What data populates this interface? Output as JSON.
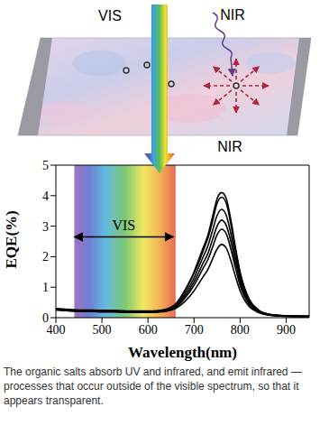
{
  "diagram": {
    "labels": {
      "vis": "VIS",
      "nir_in": "NIR",
      "nir_out": "NIR"
    }
  },
  "chart_data": {
    "type": "line",
    "x_label": "Wavelength(nm)",
    "y_label": "EQE(%)",
    "x": [
      400,
      420,
      440,
      460,
      480,
      500,
      520,
      540,
      560,
      580,
      600,
      620,
      640,
      660,
      680,
      700,
      710,
      720,
      730,
      740,
      750,
      760,
      770,
      780,
      790,
      800,
      820,
      840,
      860,
      880,
      900,
      920,
      940,
      950
    ],
    "series": [
      {
        "color": "#000000",
        "values": [
          0.3,
          0.28,
          0.26,
          0.25,
          0.25,
          0.24,
          0.24,
          0.23,
          0.22,
          0.22,
          0.22,
          0.23,
          0.28,
          0.45,
          0.9,
          1.5,
          1.9,
          2.3,
          2.7,
          3.3,
          3.9,
          4.1,
          3.9,
          3.2,
          2.3,
          1.5,
          0.6,
          0.25,
          0.12,
          0.08,
          0.06,
          0.05,
          0.05,
          0.05
        ]
      },
      {
        "color": "#000000",
        "values": [
          0.29,
          0.27,
          0.25,
          0.24,
          0.24,
          0.23,
          0.23,
          0.22,
          0.21,
          0.21,
          0.21,
          0.22,
          0.27,
          0.43,
          0.86,
          1.45,
          1.8,
          2.2,
          2.6,
          3.15,
          3.75,
          3.95,
          3.75,
          3.05,
          2.2,
          1.45,
          0.58,
          0.24,
          0.12,
          0.08,
          0.06,
          0.05,
          0.05,
          0.05
        ]
      },
      {
        "color": "#000000",
        "values": [
          0.28,
          0.26,
          0.24,
          0.23,
          0.23,
          0.22,
          0.22,
          0.21,
          0.2,
          0.2,
          0.2,
          0.21,
          0.26,
          0.4,
          0.78,
          1.3,
          1.65,
          2.0,
          2.35,
          2.85,
          3.35,
          3.55,
          3.35,
          2.75,
          2.0,
          1.3,
          0.52,
          0.22,
          0.11,
          0.07,
          0.05,
          0.05,
          0.04,
          0.04
        ]
      },
      {
        "color": "#000000",
        "values": [
          0.27,
          0.25,
          0.23,
          0.22,
          0.22,
          0.21,
          0.21,
          0.2,
          0.19,
          0.19,
          0.19,
          0.2,
          0.24,
          0.37,
          0.7,
          1.17,
          1.48,
          1.8,
          2.1,
          2.55,
          3.0,
          3.2,
          3.02,
          2.5,
          1.8,
          1.17,
          0.47,
          0.2,
          0.1,
          0.07,
          0.05,
          0.04,
          0.04,
          0.04
        ]
      },
      {
        "color": "#000000",
        "values": [
          0.26,
          0.24,
          0.22,
          0.21,
          0.21,
          0.2,
          0.2,
          0.19,
          0.18,
          0.18,
          0.18,
          0.19,
          0.23,
          0.34,
          0.64,
          1.06,
          1.34,
          1.63,
          1.9,
          2.3,
          2.72,
          2.9,
          2.75,
          2.25,
          1.63,
          1.06,
          0.43,
          0.19,
          0.1,
          0.06,
          0.05,
          0.04,
          0.04,
          0.04
        ]
      },
      {
        "color": "#000000",
        "values": [
          0.25,
          0.23,
          0.21,
          0.2,
          0.2,
          0.19,
          0.19,
          0.18,
          0.17,
          0.17,
          0.17,
          0.18,
          0.21,
          0.3,
          0.53,
          0.88,
          1.11,
          1.35,
          1.58,
          1.92,
          2.25,
          2.4,
          2.28,
          1.87,
          1.35,
          0.88,
          0.36,
          0.17,
          0.09,
          0.06,
          0.04,
          0.04,
          0.03,
          0.03
        ]
      }
    ],
    "xlim": [
      400,
      950
    ],
    "xticks": [
      400,
      500,
      600,
      700,
      800,
      900
    ],
    "ylim": [
      0,
      5
    ],
    "yticks": [
      0,
      1,
      2,
      3,
      4,
      5
    ],
    "grid": false,
    "spectrum_band": [
      440,
      660
    ],
    "annotations": [
      {
        "text": "VIS",
        "x": [
          440,
          655
        ],
        "y": 2.65
      }
    ]
  },
  "caption": "The organic salts absorb UV and infrared, and emit infrared — processes that occur outside of the visible spectrum, so that it appears transparent."
}
